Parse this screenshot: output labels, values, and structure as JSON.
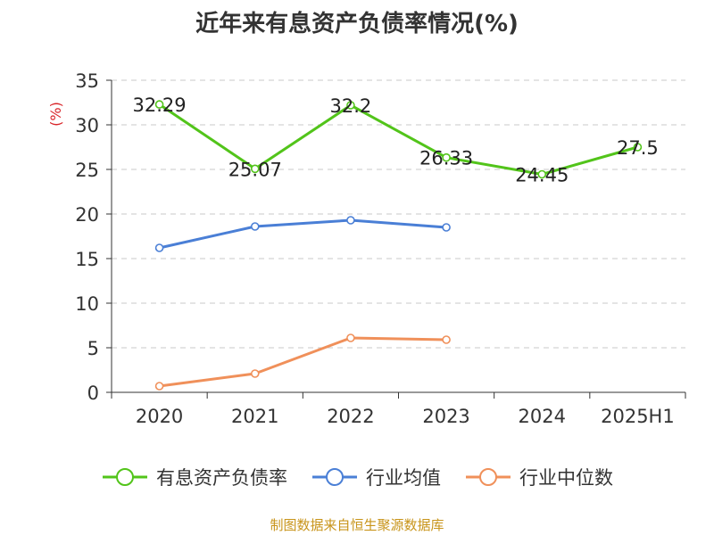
{
  "title": "近年来有息资产负债率情况(%)",
  "source_note": "制图数据来自恒生聚源数据库",
  "chart_data": {
    "type": "line",
    "title": "近年来有息资产负债率情况(%)",
    "ylabel": "(%)",
    "xlabel": "",
    "categories": [
      "2020",
      "2021",
      "2022",
      "2023",
      "2024",
      "2025H1"
    ],
    "ylim": [
      0,
      35
    ],
    "yticks": [
      0,
      5,
      10,
      15,
      20,
      25,
      30,
      35
    ],
    "grid": true,
    "legend_position": "bottom",
    "series": [
      {
        "name": "有息资产负债率",
        "color": "#52c41a",
        "values": [
          32.29,
          25.07,
          32.2,
          26.33,
          24.45,
          27.5
        ],
        "labels": [
          "32.29",
          "25.07",
          "32.2",
          "26.33",
          "24.45",
          "27.5"
        ]
      },
      {
        "name": "行业均值",
        "color": "#4a7fd6",
        "values": [
          16.2,
          18.6,
          19.3,
          18.5,
          null,
          null
        ]
      },
      {
        "name": "行业中位数",
        "color": "#f0905a",
        "values": [
          0.7,
          2.1,
          6.1,
          5.9,
          null,
          null
        ]
      }
    ]
  }
}
